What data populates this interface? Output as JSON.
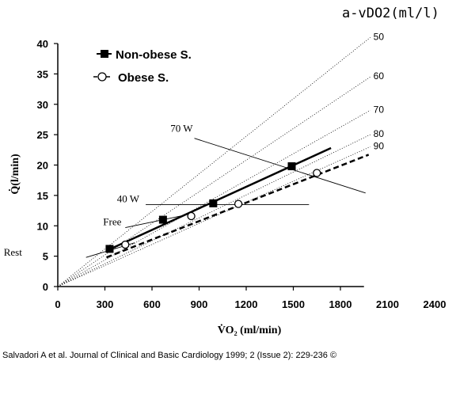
{
  "chart_data": {
    "type": "line",
    "xlabel": "V̇O₂ (ml/min)",
    "ylabel": "Q̇(l/min)",
    "xlim": [
      0,
      2400
    ],
    "ylim": [
      0,
      40
    ],
    "x_ticks": [
      "0",
      "300",
      "600",
      "900",
      "1200",
      "1500",
      "1800",
      "2100",
      "2400"
    ],
    "y_ticks": [
      "0",
      "5",
      "10",
      "15",
      "20",
      "25",
      "30",
      "35",
      "40"
    ],
    "grid": false,
    "legend_position": "top-left",
    "series": [
      {
        "name": "Non-obese S.",
        "marker": "filled-square",
        "line": "solid",
        "points": [
          [
            330,
            6.2
          ],
          [
            670,
            11.0
          ],
          [
            990,
            13.7
          ],
          [
            1490,
            19.8
          ]
        ],
        "fit_line": [
          [
            310,
            5.9
          ],
          [
            1740,
            22.8
          ]
        ]
      },
      {
        "name": "Obese S.",
        "marker": "open-circle",
        "line": "dashed",
        "points": [
          [
            430,
            6.9
          ],
          [
            850,
            11.6
          ],
          [
            1150,
            13.6
          ],
          [
            1650,
            18.7
          ]
        ],
        "fit_line": [
          [
            310,
            4.8
          ],
          [
            1980,
            21.7
          ]
        ]
      }
    ],
    "isopleths": {
      "title": "a-vDO2(ml/l)",
      "lines": [
        {
          "label": "50",
          "end": [
            1990,
            41
          ]
        },
        {
          "label": "60",
          "end": [
            1990,
            34.5
          ]
        },
        {
          "label": "70",
          "end": [
            1990,
            29
          ]
        },
        {
          "label": "80",
          "end": [
            1990,
            25
          ]
        },
        {
          "label": "90",
          "end": [
            1990,
            23
          ]
        }
      ]
    },
    "annotations": [
      {
        "text": "70 W",
        "line": [
          [
            870,
            24.4
          ],
          [
            1960,
            15.4
          ]
        ]
      },
      {
        "text": "40 W",
        "line": [
          [
            560,
            13.5
          ],
          [
            1600,
            13.5
          ]
        ]
      },
      {
        "text": "Free",
        "line": [
          [
            430,
            9.7
          ],
          [
            800,
            11.7
          ]
        ]
      },
      {
        "text": "Rest",
        "line": [
          [
            180,
            4.8
          ],
          [
            490,
            7.2
          ]
        ]
      }
    ]
  },
  "caption": "Salvadori A et al. Journal of Clinical and Basic Cardiology 1999; 2 (Issue 2): 229-236 ©"
}
